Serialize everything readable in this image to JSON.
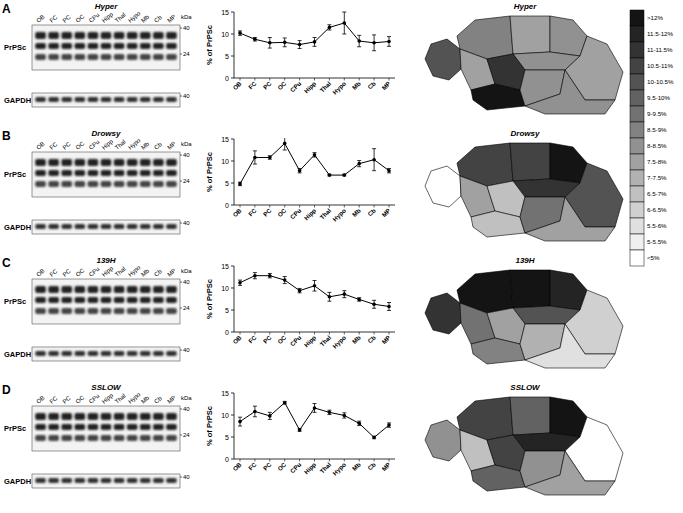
{
  "chart_data": [
    {
      "type": "line",
      "label": "A",
      "title": "Hyper",
      "categories": [
        "OB",
        "FC",
        "PC",
        "OC",
        "CPu",
        "Hipp",
        "Thal",
        "Hypo",
        "Mb",
        "Cb",
        "MP"
      ],
      "values": [
        10.2,
        8.8,
        8.0,
        8.1,
        7.6,
        8.2,
        11.5,
        12.5,
        8.4,
        8.0,
        8.3
      ],
      "errors": [
        0.5,
        0.4,
        1.2,
        1.0,
        0.9,
        1.0,
        0.6,
        2.5,
        1.3,
        1.8,
        1.1
      ],
      "y_label": "% of PrPSc",
      "ylim": [
        0,
        15
      ],
      "yticks": [
        0,
        5,
        10,
        15
      ],
      "color": "#000000",
      "marker": "circle",
      "blot": {
        "rows": [
          "PrPSc",
          "GAPDH"
        ],
        "kda_label": "kDa",
        "markers": [
          40,
          24,
          40
        ]
      }
    },
    {
      "type": "line",
      "label": "B",
      "title": "Drowsy",
      "categories": [
        "OB",
        "FC",
        "PC",
        "OC",
        "CPu",
        "Hipp",
        "Thal",
        "Hypo",
        "Mb",
        "Cb",
        "MP"
      ],
      "values": [
        4.8,
        10.8,
        10.8,
        14.0,
        7.8,
        11.4,
        6.8,
        6.8,
        9.4,
        10.3,
        7.8
      ],
      "errors": [
        0.4,
        1.5,
        0.4,
        1.5,
        0.5,
        0.5,
        0.2,
        0.2,
        0.7,
        2.5,
        0.5
      ],
      "y_label": "% of PrPSc",
      "ylim": [
        0,
        15
      ],
      "yticks": [
        0,
        5,
        10,
        15
      ],
      "color": "#000000",
      "marker": "circle",
      "blot": {
        "rows": [
          "PrPSc",
          "GAPDH"
        ],
        "kda_label": "kDa",
        "markers": [
          40,
          24,
          40
        ]
      }
    },
    {
      "type": "line",
      "label": "C",
      "title": "139H",
      "categories": [
        "OB",
        "FC",
        "PC",
        "OC",
        "CPu",
        "Hipp",
        "Thal",
        "Hypo",
        "Mb",
        "Cb",
        "MP"
      ],
      "values": [
        11.2,
        12.8,
        12.8,
        11.8,
        9.4,
        10.5,
        8.0,
        8.6,
        7.4,
        6.3,
        5.8
      ],
      "errors": [
        0.6,
        0.7,
        0.5,
        0.8,
        0.5,
        1.2,
        1.0,
        0.8,
        0.4,
        0.9,
        0.9
      ],
      "y_label": "% of PrPSc",
      "ylim": [
        0,
        15
      ],
      "yticks": [
        0,
        5,
        10,
        15
      ],
      "color": "#000000",
      "marker": "circle",
      "blot": {
        "rows": [
          "PrPSc",
          "GAPDH"
        ],
        "kda_label": "kDa",
        "markers": [
          40,
          24,
          40
        ]
      }
    },
    {
      "type": "line",
      "label": "D",
      "title": "SSLOW",
      "categories": [
        "OB",
        "FC",
        "PC",
        "OC",
        "CPu",
        "Hipp",
        "Thal",
        "Hypo",
        "Mb",
        "Cb",
        "MP"
      ],
      "values": [
        8.5,
        10.8,
        9.8,
        12.8,
        6.6,
        11.6,
        10.6,
        9.9,
        8.1,
        4.9,
        7.7
      ],
      "errors": [
        1.0,
        1.2,
        0.8,
        0.3,
        0.3,
        1.0,
        0.5,
        0.6,
        0.5,
        0.3,
        0.5
      ],
      "y_label": "% of PrPSc",
      "ylim": [
        0,
        15
      ],
      "yticks": [
        0,
        5,
        10,
        15
      ],
      "color": "#000000",
      "marker": "circle",
      "blot": {
        "rows": [
          "PrPSc",
          "GAPDH"
        ],
        "kda_label": "kDa",
        "markers": [
          40,
          24,
          40
        ]
      }
    }
  ],
  "colorbar": {
    "edges": [
      12,
      11.5,
      11,
      10.5,
      10,
      9.5,
      9,
      8.5,
      8,
      7.5,
      7,
      6.5,
      6,
      5.5,
      5
    ],
    "labels": [
      ">12%",
      "11.5-12%",
      "11-11.5%",
      "10.5-11%",
      "10-10.5%",
      "9.5-10%",
      "9-9.5%",
      "8.5-9%",
      "8-8.5%",
      "7.5-8%",
      "7-7.5%",
      "6.5-7%",
      "6-6.5%",
      "5.5-6%",
      "5-5.5%",
      "<5%"
    ]
  }
}
